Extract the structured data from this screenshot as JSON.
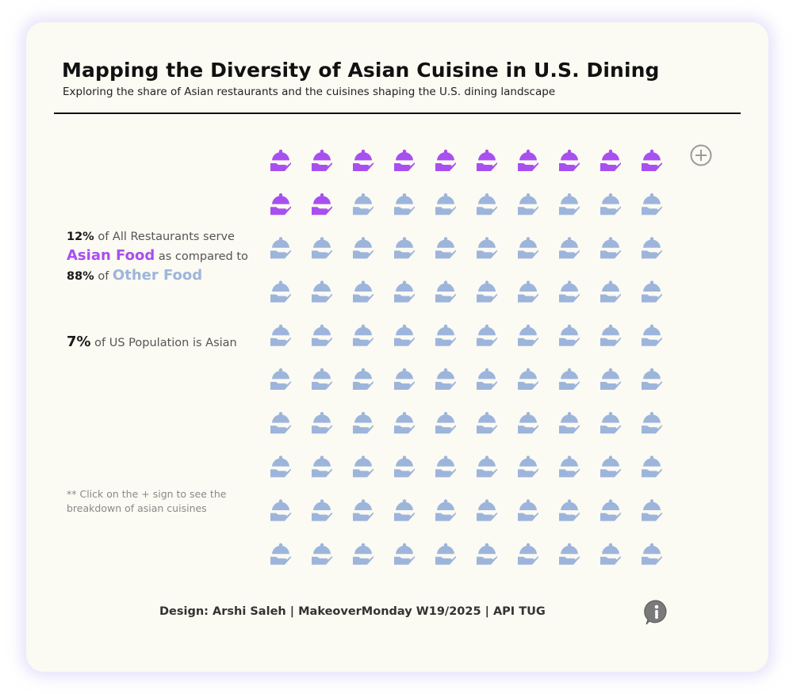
{
  "header": {
    "title": "Mapping the Diversity of Asian Cuisine in U.S. Dining",
    "subtitle": "Exploring the share of Asian restaurants and the cuisines shaping the U.S. dining landscape"
  },
  "stats": {
    "asian_pct": "12%",
    "line1_rest": "of All Restaurants serve",
    "asian_label": "Asian Food",
    "line2_rest": "as compared to",
    "other_pct": "88%",
    "line3_of": "of",
    "other_label": "Other Food",
    "population_pct": "7%",
    "population_text": "of US Population is Asian"
  },
  "note": "** Click on the + sign to see the breakdown of asian cuisines",
  "footer": "Design: Arshi Saleh | MakeoverMonday W19/2025 | API TUG",
  "icons": {
    "unit": "cloche-dish-icon",
    "expand": "plus-circle-icon",
    "info": "info-icon"
  },
  "colors": {
    "asian": "#a84ff0",
    "other": "#9db5db"
  },
  "chart_data": {
    "type": "waffle",
    "title": "Mapping the Diversity of Asian Cuisine in U.S. Dining",
    "rows": 10,
    "columns": 10,
    "categories": [
      "Asian Food",
      "Other Food"
    ],
    "values": [
      12,
      88
    ],
    "unit": "%"
  }
}
